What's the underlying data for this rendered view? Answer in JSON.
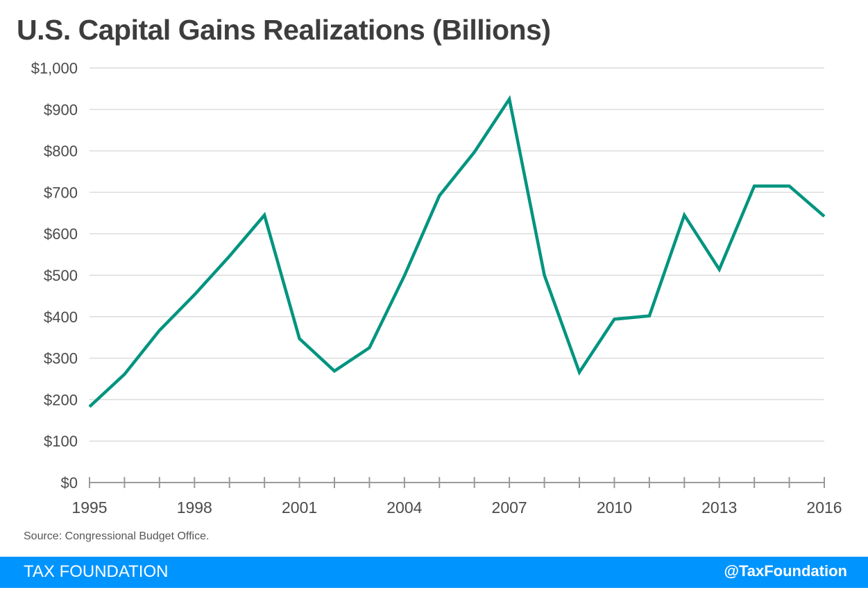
{
  "colors": {
    "line": "#00947f",
    "grid": "#dcdcdc",
    "axis": "#9a9a9a",
    "footer_bg": "#0094ff"
  },
  "source": "Source: Congressional Budget Office.",
  "footer": {
    "left": "TAX FOUNDATION",
    "right": "@TaxFoundation"
  },
  "chart_data": {
    "type": "line",
    "title": "U.S. Capital Gains Realizations (Billions)",
    "xlabel": "",
    "ylabel": "",
    "x": [
      1995,
      1996,
      1997,
      1998,
      1999,
      2000,
      2001,
      2002,
      2003,
      2004,
      2005,
      2006,
      2007,
      2008,
      2009,
      2010,
      2011,
      2012,
      2013,
      2014,
      2015,
      2016
    ],
    "series": [
      {
        "name": "Capital Gains Realizations",
        "values": [
          183,
          261,
          367,
          453,
          546,
          645,
          347,
          269,
          325,
          499,
          692,
          797,
          925,
          500,
          266,
          394,
          402,
          645,
          514,
          715,
          715,
          642
        ]
      }
    ],
    "ylim": [
      0,
      1000
    ],
    "yticks": [
      0,
      100,
      200,
      300,
      400,
      500,
      600,
      700,
      800,
      900,
      1000
    ],
    "ytick_labels": [
      "$0",
      "$100",
      "$200",
      "$300",
      "$400",
      "$500",
      "$600",
      "$700",
      "$800",
      "$900",
      "$1,000"
    ],
    "xtick_labels": [
      "1995",
      "1998",
      "2001",
      "2004",
      "2007",
      "2010",
      "2013",
      "2016"
    ],
    "xtick_label_years": [
      1995,
      1998,
      2001,
      2004,
      2007,
      2010,
      2013,
      2016
    ],
    "grid": true,
    "legend": "none"
  }
}
